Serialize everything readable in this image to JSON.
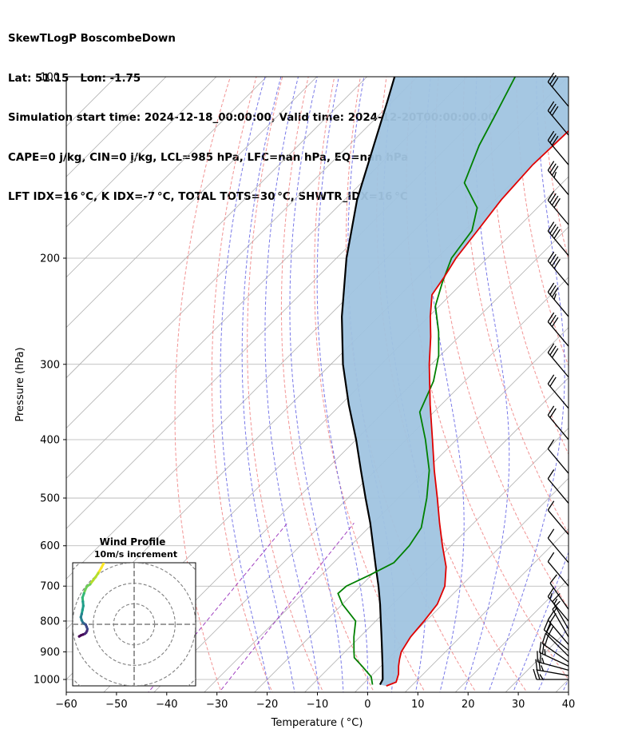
{
  "header": {
    "line1": "SkewTLogP BoscombeDown",
    "line2": "Lat: 51.15   Lon: -1.75",
    "line3": "Simulation start time: 2024-12-18_00:00:00, Valid time: 2024-12-20T00:00:00.00",
    "line4": "CAPE=0 j/kg, CIN=0 j/kg, LCL=985 hPa, LFC=nan hPa, EQ=nan hPa",
    "line5": "LFT IDX=16 °C, K IDX=-7 °C, TOTAL TOTS=30 °C, SHWTR_IDX=16 °C"
  },
  "chart_data": [
    {
      "type": "line",
      "subtype": "skew-t log-p",
      "xlabel": "Temperature ( °C)",
      "ylabel": "Pressure (hPa)",
      "xlim": [
        -60,
        40
      ],
      "ylim": [
        1050,
        100
      ],
      "yscale": "log",
      "x_ticks": [
        -60,
        -50,
        -40,
        -30,
        -20,
        -10,
        0,
        10,
        20,
        30,
        40
      ],
      "x_tick_labels": [
        "−60",
        "−50",
        "−40",
        "−30",
        "−20",
        "−10",
        "0",
        "10",
        "20",
        "30",
        "40"
      ],
      "y_ticks": [
        100,
        200,
        300,
        400,
        500,
        600,
        700,
        800,
        900,
        1000
      ],
      "y_tick_labels": [
        "100",
        "200",
        "300",
        "400",
        "500",
        "600",
        "700",
        "800",
        "900",
        "1000"
      ],
      "grid": true,
      "series": [
        {
          "role": "temperature",
          "color": "#e00000",
          "points": [
            [
              1025,
              5
            ],
            [
              1010,
              6.2
            ],
            [
              980,
              5.1
            ],
            [
              950,
              3.5
            ],
            [
              925,
              2.3
            ],
            [
              900,
              1.2
            ],
            [
              850,
              0.1
            ],
            [
              800,
              -0.4
            ],
            [
              750,
              -1.1
            ],
            [
              700,
              -3.2
            ],
            [
              650,
              -6.8
            ],
            [
              600,
              -11.7
            ],
            [
              550,
              -16.8
            ],
            [
              500,
              -22.2
            ],
            [
              450,
              -28.3
            ],
            [
              400,
              -34.8
            ],
            [
              350,
              -42.2
            ],
            [
              300,
              -50.4
            ],
            [
              270,
              -55.6
            ],
            [
              250,
              -59.7
            ],
            [
              230,
              -63.7
            ],
            [
              215,
              -64.8
            ],
            [
              200,
              -66.2
            ],
            [
              180,
              -67.4
            ],
            [
              160,
              -68.8
            ],
            [
              140,
              -69.5
            ],
            [
              120,
              -69.0
            ],
            [
              100,
              -69.2
            ]
          ]
        },
        {
          "role": "dewpoint",
          "color": "#008000",
          "points": [
            [
              1020,
              2.0
            ],
            [
              990,
              0.2
            ],
            [
              950,
              -3.8
            ],
            [
              920,
              -7.0
            ],
            [
              900,
              -8.2
            ],
            [
              850,
              -11.2
            ],
            [
              800,
              -14.0
            ],
            [
              750,
              -20.0
            ],
            [
              720,
              -23.0
            ],
            [
              700,
              -22.8
            ],
            [
              670,
              -20.3
            ],
            [
              640,
              -18.0
            ],
            [
              600,
              -18.3
            ],
            [
              560,
              -19.5
            ],
            [
              500,
              -24.3
            ],
            [
              450,
              -29.3
            ],
            [
              400,
              -36.2
            ],
            [
              360,
              -42.8
            ],
            [
              320,
              -46.2
            ],
            [
              290,
              -50.3
            ],
            [
              265,
              -55.0
            ],
            [
              240,
              -60.8
            ],
            [
              220,
              -64.0
            ],
            [
              200,
              -67.1
            ],
            [
              180,
              -68.5
            ],
            [
              165,
              -72.0
            ],
            [
              150,
              -79.5
            ],
            [
              130,
              -84.0
            ],
            [
              115,
              -87.0
            ],
            [
              100,
              -90.5
            ]
          ]
        },
        {
          "role": "parcel",
          "color": "#000000",
          "points": [
            [
              1020,
              3.5
            ],
            [
              1000,
              3.0
            ],
            [
              950,
              0.3
            ],
            [
              900,
              -2.6
            ],
            [
              850,
              -5.7
            ],
            [
              800,
              -9.0
            ],
            [
              750,
              -12.5
            ],
            [
              700,
              -16.4
            ],
            [
              650,
              -20.8
            ],
            [
              600,
              -25.5
            ],
            [
              550,
              -30.6
            ],
            [
              500,
              -36.5
            ],
            [
              450,
              -42.9
            ],
            [
              400,
              -50.0
            ],
            [
              350,
              -58.4
            ],
            [
              300,
              -67.6
            ],
            [
              250,
              -77.3
            ],
            [
              200,
              -88.0
            ],
            [
              160,
              -97.5
            ],
            [
              130,
              -105.0
            ],
            [
              110,
              -111.0
            ],
            [
              100,
              -114.5
            ]
          ]
        }
      ],
      "shaded_area_color": "#a0c4e0",
      "reference_lines": {
        "isotherms_color": "#b0b0b0",
        "dry_adiabats_color": "#f08080",
        "moist_adiabats_color": "#6a6ae6",
        "mixing_ratio_color": "#a040c0"
      },
      "wind_barbs": [
        {
          "p": 1000,
          "speed_kt": 25,
          "dir": 270
        },
        {
          "p": 985,
          "speed_kt": 25,
          "dir": 280
        },
        {
          "p": 965,
          "speed_kt": 25,
          "dir": 285
        },
        {
          "p": 950,
          "speed_kt": 25,
          "dir": 295
        },
        {
          "p": 935,
          "speed_kt": 20,
          "dir": 305
        },
        {
          "p": 915,
          "speed_kt": 20,
          "dir": 315
        },
        {
          "p": 895,
          "speed_kt": 20,
          "dir": 310
        },
        {
          "p": 875,
          "speed_kt": 20,
          "dir": 320
        },
        {
          "p": 850,
          "speed_kt": 15,
          "dir": 330
        },
        {
          "p": 825,
          "speed_kt": 15,
          "dir": 330
        },
        {
          "p": 800,
          "speed_kt": 15,
          "dir": 320
        },
        {
          "p": 765,
          "speed_kt": 10,
          "dir": 325
        },
        {
          "p": 700,
          "speed_kt": 10,
          "dir": 320
        },
        {
          "p": 640,
          "speed_kt": 10,
          "dir": 320
        },
        {
          "p": 575,
          "speed_kt": 10,
          "dir": 320
        },
        {
          "p": 510,
          "speed_kt": 10,
          "dir": 320
        },
        {
          "p": 455,
          "speed_kt": 10,
          "dir": 320
        },
        {
          "p": 400,
          "speed_kt": 20,
          "dir": 320
        },
        {
          "p": 355,
          "speed_kt": 20,
          "dir": 320
        },
        {
          "p": 315,
          "speed_kt": 30,
          "dir": 320
        },
        {
          "p": 280,
          "speed_kt": 30,
          "dir": 320
        },
        {
          "p": 250,
          "speed_kt": 35,
          "dir": 320
        },
        {
          "p": 222,
          "speed_kt": 40,
          "dir": 320
        },
        {
          "p": 198,
          "speed_kt": 40,
          "dir": 320
        },
        {
          "p": 176,
          "speed_kt": 40,
          "dir": 320
        },
        {
          "p": 157,
          "speed_kt": 35,
          "dir": 320
        },
        {
          "p": 140,
          "speed_kt": 30,
          "dir": 320
        },
        {
          "p": 125,
          "speed_kt": 30,
          "dir": 320
        },
        {
          "p": 112,
          "speed_kt": 30,
          "dir": 320
        }
      ]
    },
    {
      "type": "scatter",
      "subtype": "hodograph",
      "title": "Wind Profile",
      "subtitle": "10m/s increment",
      "xlim": [
        -30,
        30
      ],
      "ylim": [
        -30,
        30
      ],
      "rings": [
        10,
        20,
        30,
        40
      ],
      "colormap": "viridis",
      "points": [
        [
          -14.5,
          -31
        ],
        [
          -15,
          -29.5
        ],
        [
          -16,
          -27.5
        ],
        [
          -17.5,
          -25
        ],
        [
          -18.8,
          -23
        ],
        [
          -20,
          -21.5
        ],
        [
          -21.5,
          -19.5
        ],
        [
          -23,
          -18.5
        ],
        [
          -23.8,
          -17
        ],
        [
          -24.5,
          -15
        ],
        [
          -25.2,
          -13
        ],
        [
          -25,
          -11
        ],
        [
          -24.8,
          -9
        ],
        [
          -25.2,
          -7
        ],
        [
          -25.6,
          -5
        ],
        [
          -26,
          -3.5
        ],
        [
          -25.6,
          -2
        ],
        [
          -25,
          -0.8
        ],
        [
          -24.3,
          -0.3
        ],
        [
          -23.6,
          0.2
        ],
        [
          -23.2,
          1.2
        ],
        [
          -22.8,
          2.3
        ],
        [
          -23,
          3.2
        ],
        [
          -23.4,
          4.0
        ],
        [
          -24,
          4.6
        ],
        [
          -25,
          5.0
        ],
        [
          -26,
          5.4
        ],
        [
          -26.8,
          5.9
        ]
      ]
    }
  ]
}
